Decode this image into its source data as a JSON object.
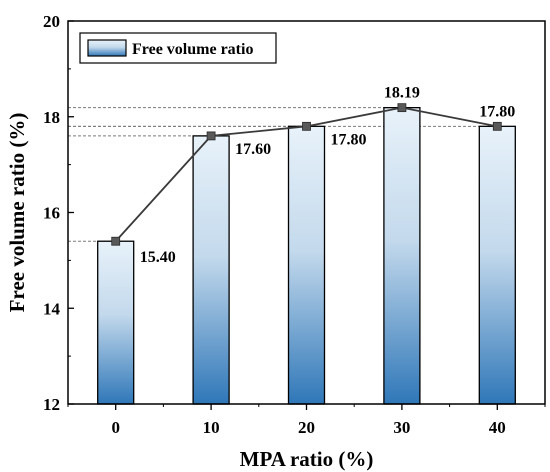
{
  "chart_data": {
    "type": "bar",
    "categories": [
      "0",
      "10",
      "20",
      "30",
      "40"
    ],
    "values": [
      15.4,
      17.6,
      17.8,
      18.19,
      17.8
    ],
    "data_labels": [
      "15.40",
      "17.60",
      "17.80",
      "18.19",
      "17.80"
    ],
    "overlay_line": true,
    "reference_lines": "dashed horizontal lines from y-axis to each point",
    "xlabel": "MPA ratio (%)",
    "ylabel": "Free volume ratio (%)",
    "ylim": [
      12,
      20
    ],
    "yticks": [
      "12",
      "14",
      "16",
      "18",
      "20"
    ],
    "legend": {
      "entries": [
        "Free volume ratio"
      ],
      "placement": "top-left"
    },
    "grid": false,
    "colors": {
      "bar_top": "#e8f2fa",
      "bar_bottom": "#2f77b8",
      "line": "#3a3a3a",
      "marker": "#595959"
    }
  }
}
